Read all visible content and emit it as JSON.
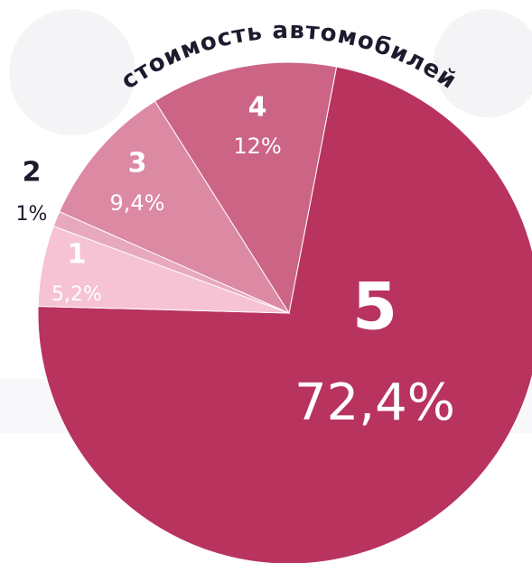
{
  "chart_data": {
    "type": "pie",
    "title": "стоимость автомобилей",
    "categories": [
      "5",
      "1",
      "2",
      "3",
      "4"
    ],
    "values": [
      72.4,
      5.2,
      1,
      9.4,
      12
    ],
    "value_labels": [
      "72,4%",
      "5,2%",
      "1%",
      "9,4%",
      "12%"
    ],
    "colors": [
      "#b8335e",
      "#f6c3d4",
      "#e8a9bd",
      "#dc89a3",
      "#cc6585"
    ]
  }
}
